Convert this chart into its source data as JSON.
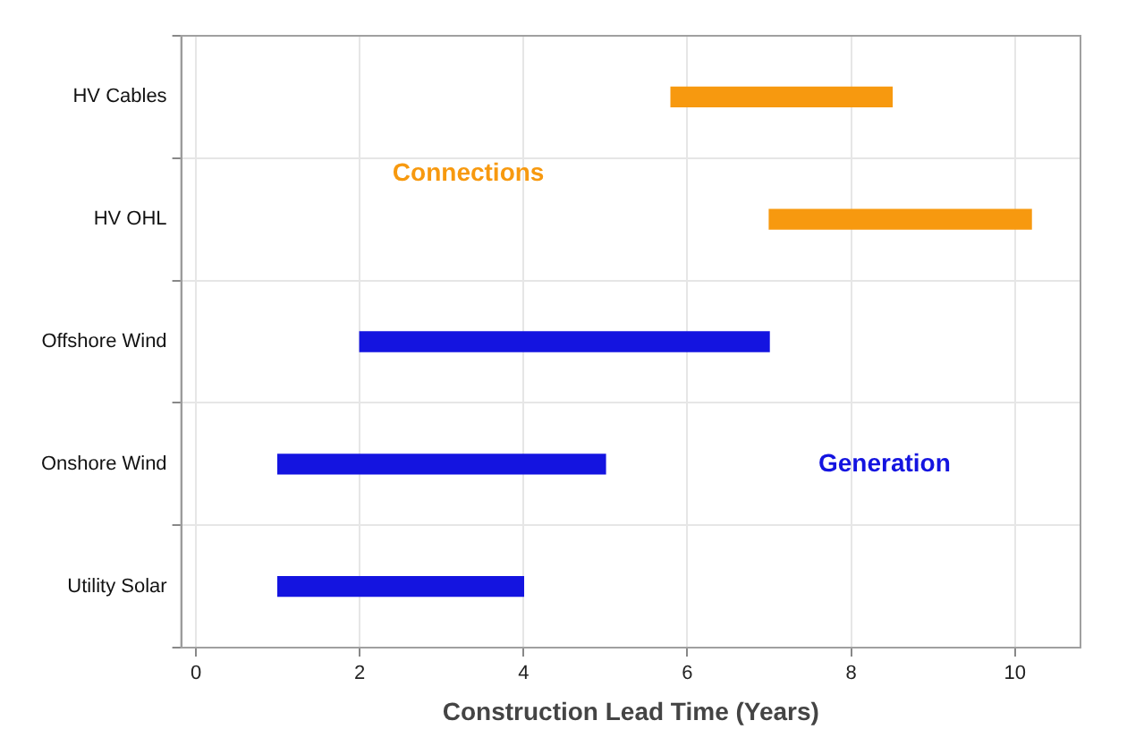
{
  "chart_data": {
    "type": "bar",
    "orientation": "horizontal",
    "xlabel": "Construction Lead Time (Years)",
    "categories": [
      "HV Cables",
      "HV OHL",
      "Offshore Wind",
      "Onshore Wind",
      "Utility Solar"
    ],
    "series": [
      {
        "name": "Connections",
        "color": "#f7990f",
        "base": [
          5.8,
          7.0,
          null,
          null,
          null
        ],
        "values": [
          2.7,
          3.2,
          null,
          null,
          null
        ]
      },
      {
        "name": "Generation",
        "color": "#1414e0",
        "base": [
          null,
          null,
          2,
          1,
          1
        ],
        "values": [
          null,
          null,
          5,
          4,
          3
        ]
      }
    ],
    "xlim": [
      -0.18,
      10.8
    ],
    "xticks": [
      0,
      2,
      4,
      6,
      8,
      10
    ],
    "grid": true,
    "legend": false
  }
}
